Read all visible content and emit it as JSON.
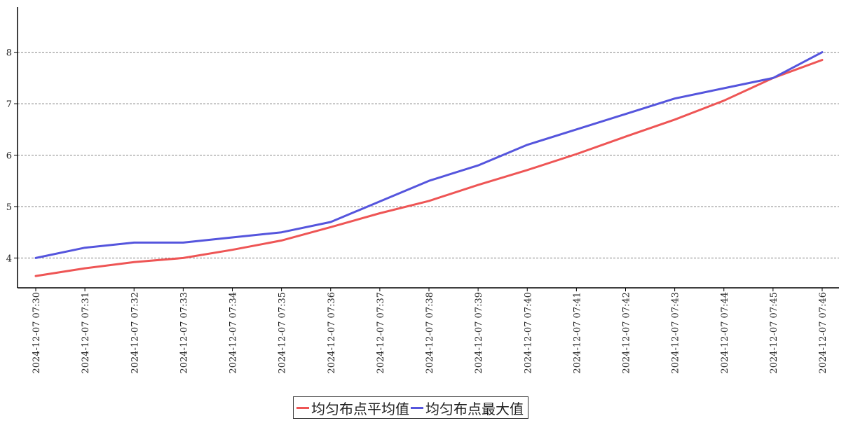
{
  "chart_data": {
    "type": "line",
    "x": [
      "2024-12-07 07:30",
      "2024-12-07 07:31",
      "2024-12-07 07:32",
      "2024-12-07 07:33",
      "2024-12-07 07:34",
      "2024-12-07 07:35",
      "2024-12-07 07:36",
      "2024-12-07 07:37",
      "2024-12-07 07:38",
      "2024-12-07 07:39",
      "2024-12-07 07:40",
      "2024-12-07 07:41",
      "2024-12-07 07:42",
      "2024-12-07 07:43",
      "2024-12-07 07:44",
      "2024-12-07 07:45",
      "2024-12-07 07:46"
    ],
    "x_tick_labels": [
      "2024-12-07  07:30",
      "2024-12-07  07:31",
      "2024-12-07  07:32",
      "2024-12-07  07:33",
      "2024-12-07  07:34",
      "2024-12-07  07:35",
      "2024-12-07  07:36",
      "2024-12-07  07:37",
      "2024-12-07  07:38",
      "2024-12-07  07:39",
      "2024-12-07  07:40",
      "2024-12-07  07:41",
      "2024-12-07  07:42",
      "2024-12-07  07:43",
      "2024-12-07  07:44",
      "2024-12-07  07:45",
      "2024-12-07  07:46"
    ],
    "y_ticks": [
      4,
      5,
      6,
      7,
      8
    ],
    "y_tick_labels": [
      "4",
      "5",
      "6",
      "7",
      "8"
    ],
    "ylim": [
      3.42,
      8.88
    ],
    "grid": "horizontal dashed",
    "legend_position": "bottom-center",
    "series": [
      {
        "name": "均匀布点平均值",
        "color": "#ee5555",
        "values": [
          3.65,
          3.8,
          3.92,
          4.0,
          4.16,
          4.34,
          4.6,
          4.87,
          5.11,
          5.42,
          5.71,
          6.02,
          6.36,
          6.69,
          7.06,
          7.5,
          7.85
        ]
      },
      {
        "name": "均匀布点最大值",
        "color": "#5555dd",
        "values": [
          4.0,
          4.2,
          4.3,
          4.3,
          4.4,
          4.5,
          4.7,
          5.1,
          5.5,
          5.8,
          6.2,
          6.5,
          6.8,
          7.1,
          7.3,
          7.5,
          8.0
        ]
      }
    ]
  }
}
